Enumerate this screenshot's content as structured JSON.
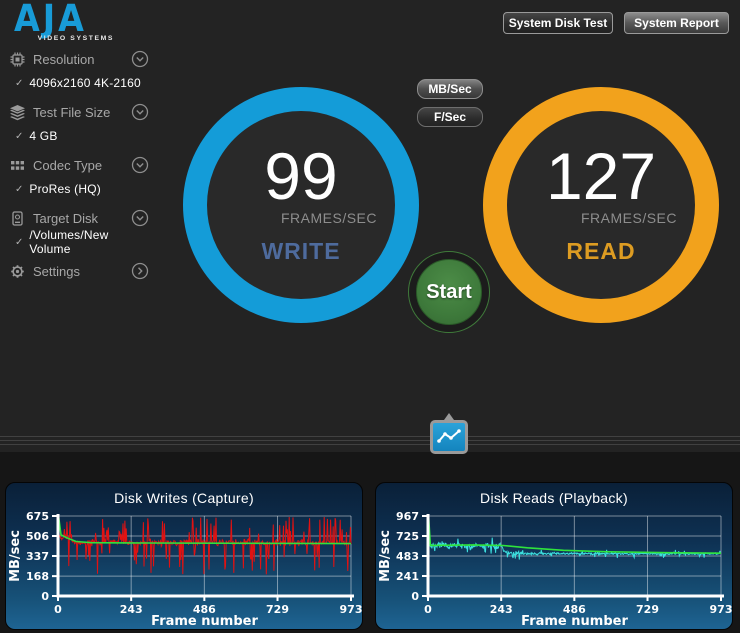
{
  "header": {
    "brand": "AJA",
    "brand_sub": "VIDEO SYSTEMS",
    "buttons": {
      "system_disk_test": "System Disk Test",
      "system_report": "System Report"
    }
  },
  "sidebar": {
    "items": [
      {
        "label": "Resolution",
        "icon": "chip-icon",
        "value": "4096x2160 4K-2160",
        "chevron": "down"
      },
      {
        "label": "Test File Size",
        "icon": "layers-icon",
        "value": "4 GB",
        "chevron": "down"
      },
      {
        "label": "Codec Type",
        "icon": "grid-icon",
        "value": "ProRes (HQ)",
        "chevron": "down"
      },
      {
        "label": "Target Disk",
        "icon": "disk-icon",
        "value": "/Volumes/New Volume",
        "chevron": "down"
      },
      {
        "label": "Settings",
        "icon": "gear-icon",
        "value": "",
        "chevron": "right"
      }
    ],
    "checkmark": "✓"
  },
  "units": {
    "options": [
      "MB/Sec",
      "F/Sec"
    ],
    "selected": "MB/Sec"
  },
  "gauges": {
    "write": {
      "value": "99",
      "unit": "FRAMES/SEC",
      "label": "WRITE",
      "ring_color": "#149cd8",
      "label_color": "#4e6b9d"
    },
    "read": {
      "value": "127",
      "unit": "FRAMES/SEC",
      "label": "READ",
      "ring_color": "#f2a21c",
      "label_color": "#dd9c22"
    }
  },
  "start_button": {
    "label": "Start",
    "color": "#3e7a3b"
  },
  "chart_data": [
    {
      "type": "line",
      "title": "Disk Writes (Capture)",
      "xlabel": "Frame number",
      "ylabel": "MB/sec",
      "xlim": [
        0,
        973
      ],
      "ylim": [
        0,
        675
      ],
      "x_ticks": [
        0,
        243,
        486,
        729,
        973
      ],
      "y_ticks": [
        0,
        168,
        337,
        506,
        675
      ],
      "grid": true,
      "series": [
        {
          "name": "instantaneous write rate",
          "color": "#e11212",
          "style": "noisy",
          "seed": 42,
          "points_n": 460,
          "start_spike": 672,
          "segments": [
            {
              "x0": 0,
              "x1": 45,
              "mean": 505,
              "std": 35,
              "spike_up_p": 0.1,
              "spike_up": [
                560,
                660
              ],
              "spike_dn_p": 0.06,
              "spike_dn": [
                250,
                400
              ]
            },
            {
              "x0": 45,
              "x1": 973,
              "mean": 452,
              "std": 26,
              "spike_up_p": 0.12,
              "spike_up": [
                520,
                668
              ],
              "spike_dn_p": 0.1,
              "spike_dn": [
                178,
                370
              ]
            }
          ]
        },
        {
          "name": "average write rate",
          "color": "#2fe43c",
          "style": "smooth",
          "width": 1.6,
          "points": [
            [
              0,
              1
            ],
            [
              2,
              672
            ],
            [
              10,
              516
            ],
            [
              30,
              490
            ],
            [
              60,
              460
            ],
            [
              110,
              450
            ],
            [
              300,
              447
            ],
            [
              973,
              442
            ]
          ]
        }
      ]
    },
    {
      "type": "line",
      "title": "Disk Reads (Playback)",
      "xlabel": "Frame number",
      "ylabel": "MB/sec",
      "xlim": [
        0,
        973
      ],
      "ylim": [
        0,
        967
      ],
      "x_ticks": [
        0,
        243,
        486,
        729,
        973
      ],
      "y_ticks": [
        0,
        241,
        483,
        725,
        967
      ],
      "grid": true,
      "series": [
        {
          "name": "instantaneous read rate",
          "color": "#3ce0df",
          "style": "noisy",
          "seed": 7,
          "points_n": 520,
          "start_spike": 963,
          "segments": [
            {
              "x0": 0,
              "x1": 250,
              "mean": 606,
              "std": 34,
              "spike_up_p": 0.07,
              "spike_up": [
                660,
                706
              ],
              "spike_dn_p": 0.05,
              "spike_dn": [
                505,
                555
              ]
            },
            {
              "x0": 250,
              "x1": 315,
              "mean": 520,
              "std": 28,
              "spike_up_p": 0.02,
              "spike_up": [
                555,
                590
              ],
              "spike_dn_p": 0.16,
              "spike_dn": [
                428,
                478
              ]
            },
            {
              "x0": 315,
              "x1": 973,
              "mean": 512,
              "std": 12,
              "spike_up_p": 0.02,
              "spike_up": [
                540,
                560
              ],
              "spike_dn_p": 0.05,
              "spike_dn": [
                458,
                492
              ]
            }
          ]
        },
        {
          "name": "average read rate",
          "color": "#2fe43c",
          "style": "smooth",
          "width": 1.6,
          "points": [
            [
              0,
              1
            ],
            [
              2,
              963
            ],
            [
              8,
              612
            ],
            [
              150,
              618
            ],
            [
              250,
              610
            ],
            [
              330,
              583
            ],
            [
              450,
              552
            ],
            [
              600,
              534
            ],
            [
              800,
              523
            ],
            [
              973,
              517
            ]
          ]
        }
      ]
    }
  ]
}
